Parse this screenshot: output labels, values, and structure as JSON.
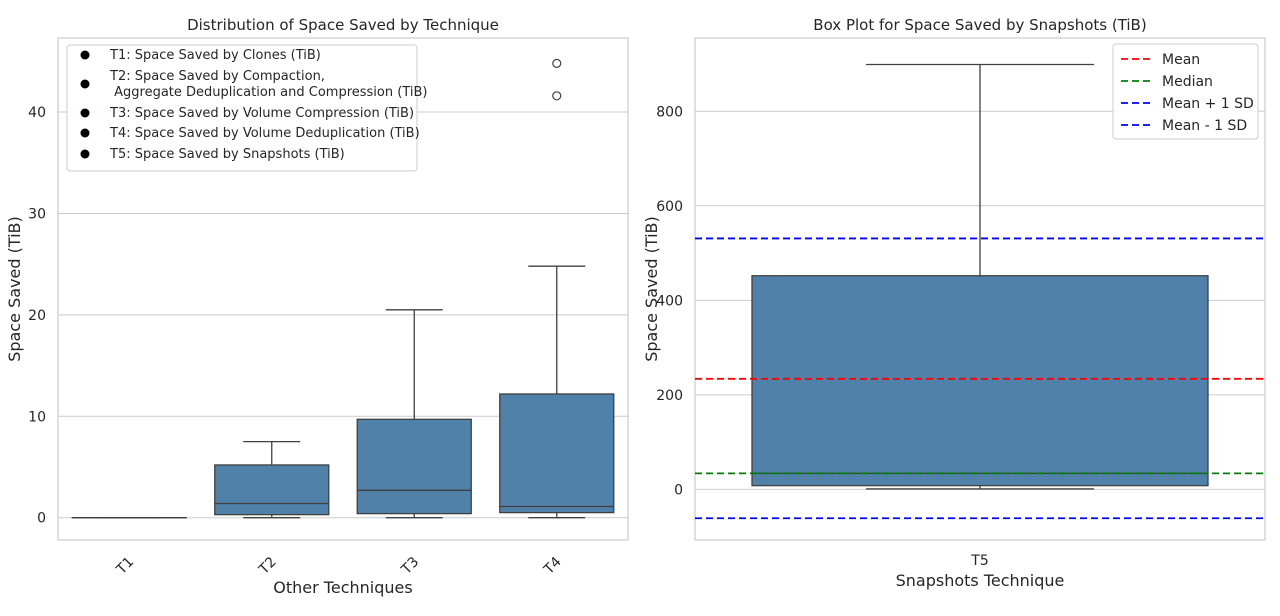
{
  "chart_data": [
    {
      "type": "box",
      "title": "Distribution of Space Saved by Technique",
      "xlabel": "Other Techniques",
      "ylabel": "Space Saved (TiB)",
      "ylim": [
        -2.2,
        47.3
      ],
      "yticks": [
        0,
        10,
        20,
        30,
        40
      ],
      "grid": "horizontal",
      "categories": [
        "T1",
        "T2",
        "T3",
        "T4"
      ],
      "boxes": [
        {
          "category": "T1",
          "whisker_low": 0,
          "q1": 0,
          "median": 0,
          "q3": 0,
          "whisker_high": 0,
          "fliers": []
        },
        {
          "category": "T2",
          "whisker_low": 0,
          "q1": 0.3,
          "median": 1.4,
          "q3": 5.2,
          "whisker_high": 7.5,
          "fliers": []
        },
        {
          "category": "T3",
          "whisker_low": 0,
          "q1": 0.4,
          "median": 2.7,
          "q3": 9.7,
          "whisker_high": 20.5,
          "fliers": []
        },
        {
          "category": "T4",
          "whisker_low": 0,
          "q1": 0.5,
          "median": 1.1,
          "q3": 12.2,
          "whisker_high": 24.8,
          "fliers": [
            44.8,
            41.6
          ]
        }
      ],
      "legend": {
        "position": "top-left",
        "entries": [
          {
            "lines": [
              "T1: Space Saved by Clones (TiB)"
            ]
          },
          {
            "lines": [
              "T2: Space Saved by Compaction,",
              " Aggregate Deduplication and Compression (TiB)"
            ]
          },
          {
            "lines": [
              "T3: Space Saved by Volume Compression (TiB)"
            ]
          },
          {
            "lines": [
              "T4: Space Saved by Volume Deduplication (TiB)"
            ]
          },
          {
            "lines": [
              "T5: Space Saved by Snapshots (TiB)"
            ]
          }
        ]
      },
      "colors": {
        "box": "#4f81a9",
        "line": "#404040",
        "marker": "#000000"
      }
    },
    {
      "type": "box",
      "title": "Box Plot for Space Saved by Snapshots (TiB)",
      "xlabel": "Snapshots Technique",
      "ylabel": "Space Saved (TiB)",
      "ylim": [
        -107,
        955
      ],
      "yticks": [
        0,
        200,
        400,
        600,
        800
      ],
      "grid": "horizontal",
      "categories": [
        "T5"
      ],
      "boxes": [
        {
          "category": "T5",
          "whisker_low": 1,
          "q1": 8,
          "median": 34,
          "q3": 452,
          "whisker_high": 899,
          "fliers": []
        }
      ],
      "reference_lines": [
        {
          "name": "Mean",
          "value": 234,
          "color": "#ff0000"
        },
        {
          "name": "Median",
          "value": 34,
          "color": "#008000"
        },
        {
          "name": "Mean + 1 SD",
          "value": 531,
          "color": "#0000ff"
        },
        {
          "name": "Mean - 1 SD",
          "value": -61,
          "color": "#0000ff"
        }
      ],
      "legend": {
        "position": "top-right"
      },
      "colors": {
        "box": "#4f81a9",
        "line": "#404040"
      }
    }
  ]
}
